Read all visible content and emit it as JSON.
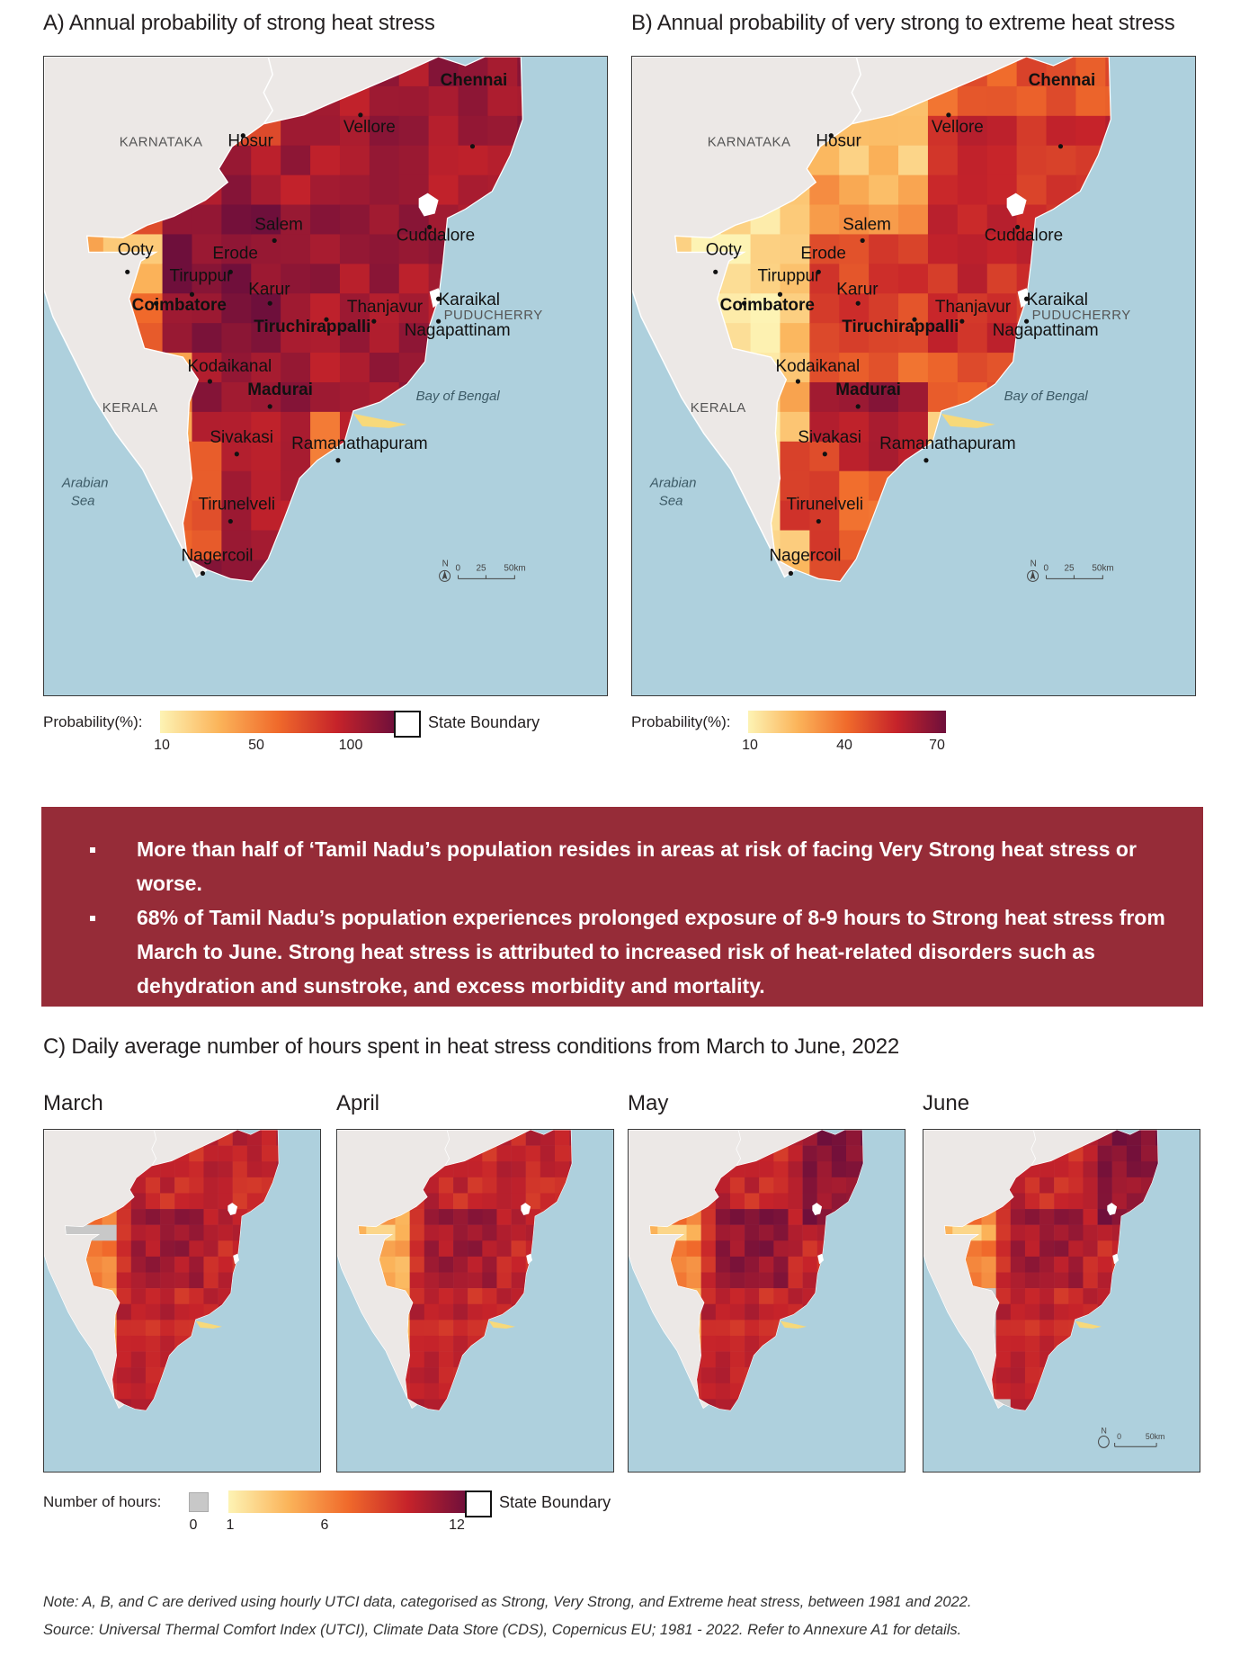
{
  "panel_a": {
    "title": "A) Annual probability of strong heat stress",
    "legend_label": "Probability(%):",
    "ticks": [
      "10",
      "50",
      "100"
    ],
    "tick_values": [
      10,
      50,
      100
    ],
    "range": [
      0,
      100
    ],
    "ramp": [
      "#fdf3b4",
      "#fbb45a",
      "#f06a2b",
      "#c6232a",
      "#6e0f3b"
    ]
  },
  "panel_b": {
    "title": "B) Annual probability of very strong to extreme heat stress",
    "legend_label": "Probability(%):",
    "ticks": [
      "10",
      "40",
      "70"
    ],
    "tick_values": [
      10,
      40,
      70
    ],
    "range": [
      0,
      70
    ],
    "ramp": [
      "#fdf3b4",
      "#fbb45a",
      "#f06a2b",
      "#c6232a",
      "#6e0f3b"
    ]
  },
  "state_boundary_label": "State Boundary",
  "map_labels": {
    "states": [
      "KARNATAKA",
      "KERALA",
      "PUDUCHERRY"
    ],
    "seas": [
      "Arabian Sea",
      "Bay of Bengal"
    ],
    "cities": [
      "Chennai",
      "Vellore",
      "Hosur",
      "Salem",
      "Cuddalore",
      "Ooty",
      "Erode",
      "Tiruppur",
      "Karur",
      "Coimbatore",
      "Karaikal",
      "Thanjavur",
      "Tiruchirappalli",
      "Nagapattinam",
      "Kodaikanal",
      "Madurai",
      "Sivakasi",
      "Ramanathapuram",
      "Tirunelveli",
      "Nagercoil"
    ],
    "bold_cities": [
      "Chennai",
      "Coimbatore",
      "Tiruchirappalli",
      "Madurai"
    ],
    "scale": [
      "0",
      "25",
      "50km"
    ],
    "north": "N",
    "scale_small": [
      "0",
      "50km"
    ]
  },
  "key_findings": [
    "More than half of ‘Tamil Nadu’s population resides in areas at risk of facing Very Strong heat stress or worse.",
    "68% of Tamil Nadu’s population experiences prolonged exposure of 8-9 hours to Strong heat stress from March to June. Strong heat stress is attributed to increased risk of heat-related disorders such as dehydration and sunstroke, and excess morbidity and mortality."
  ],
  "panel_c": {
    "title": "C) Daily average number of hours spent in heat stress conditions from March to June, 2022",
    "months": [
      "March",
      "April",
      "May",
      "June"
    ],
    "legend_label": "Number of hours:",
    "zero_tick": "0",
    "ticks": [
      "1",
      "6",
      "12"
    ],
    "tick_values": [
      1,
      6,
      12
    ],
    "range": [
      1,
      12
    ],
    "zero_color": "#c8c8c8",
    "ramp": [
      "#fdf3b4",
      "#fbb45a",
      "#f06a2b",
      "#c6232a",
      "#6e0f3b"
    ]
  },
  "notes": {
    "note": "Note: A, B, and C are derived using hourly UTCI data, categorised as Strong, Very Strong, and Extreme heat stress, between 1981 and 2022.",
    "source": "Source: Universal Thermal Comfort Index (UTCI), Climate Data Store (CDS), Copernicus EU; 1981 - 2022. Refer to Annexure A1 for details."
  },
  "colors": {
    "banner": "#962c38",
    "sea": "#aed0dd",
    "land_outside": "#ece8e6"
  }
}
